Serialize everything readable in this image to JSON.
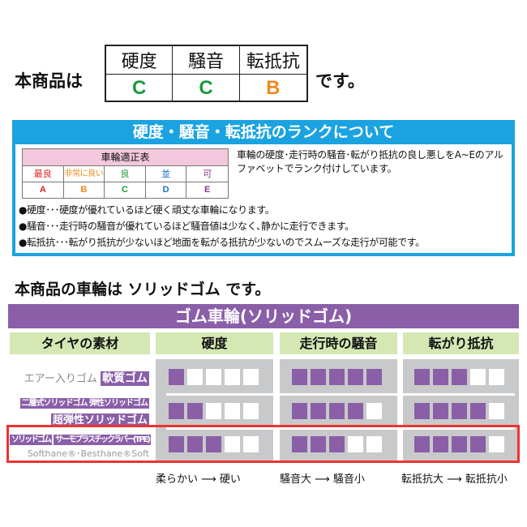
{
  "summary": {
    "prefix": "本商品は",
    "suffix": "です。",
    "headers": [
      "硬度",
      "騒音",
      "転抵抗"
    ],
    "grades": [
      "C",
      "C",
      "B"
    ],
    "grade_colors": [
      "#1a9a3c",
      "#1a9a3c",
      "#f08a1c"
    ]
  },
  "info": {
    "title": "硬度・騒音・転抵抗のランクについて",
    "table_title": "車輪適正表",
    "labels": [
      "最良",
      "非常に良い",
      "良",
      "並",
      "可"
    ],
    "grades": [
      "A",
      "B",
      "C",
      "D",
      "E"
    ],
    "colors": [
      "#e02020",
      "#f08a1c",
      "#1a9a3c",
      "#1a6fc0",
      "#8a3a8a"
    ],
    "description": "車輪の硬度･走行時の騒音･転がり抵抗の良し悪しをA~Eのアルファベットでランク付けしています。",
    "bullets": [
      "●硬度･･･硬度が優れているほど硬く頑丈な車輪になります。",
      "●騒音･･･走行時の騒音が優れているほど騒音値は少なく､静かに走行できます。",
      "●転抵抗･･･転がり抵抗が少ないほど地面を転がる抵抗が少ないのでスムーズな走行が可能です。"
    ]
  },
  "product_line": "本商品の車輪は ソリッドゴム です。",
  "rubber": {
    "title": "ゴム車輪(ソリッドゴム)",
    "headers": [
      "タイヤの素材",
      "硬度",
      "走行時の騒音",
      "転がり抵抗"
    ],
    "rows": [
      {
        "materials": [
          "エアー入りゴム",
          "軟質ゴム"
        ],
        "ratings": [
          1,
          5,
          3
        ]
      },
      {
        "materials": [
          "二層式ソリッドゴム 弾性ソリッドゴム",
          "超弾性ソリッドゴム"
        ],
        "ratings": [
          2,
          4,
          4
        ]
      },
      {
        "materials": [
          "ソリッドゴム",
          "サーモプラスチックラバー(TPE)",
          "Softhane®･Besthane®Soft"
        ],
        "ratings": [
          3,
          3,
          4
        ],
        "highlighted": true
      }
    ],
    "scale_max": 5,
    "legend": [
      "柔らかい ⟶ 硬い",
      "騒音大 ⟶ 騒音小",
      "転抵抗大 ⟶ 転抵抗小"
    ],
    "accent": "#8a5fa8",
    "highlight": "#ee3333"
  }
}
